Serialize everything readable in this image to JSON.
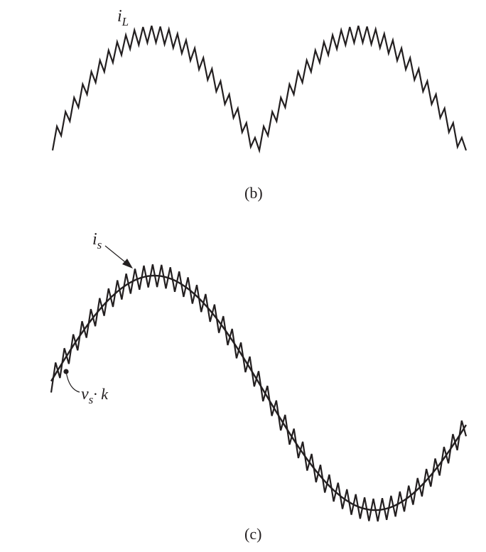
{
  "panel_b": {
    "waveform_label_main": "i",
    "waveform_label_sub": "L",
    "caption": "(b)"
  },
  "panel_c": {
    "current_label_main": "i",
    "current_label_sub": "s",
    "reference_label_main": "v",
    "reference_label_sub": "s",
    "reference_label_rest": "· k",
    "caption": "(c)"
  },
  "colors": {
    "ink": "#231f20",
    "background": "#ffffff"
  }
}
